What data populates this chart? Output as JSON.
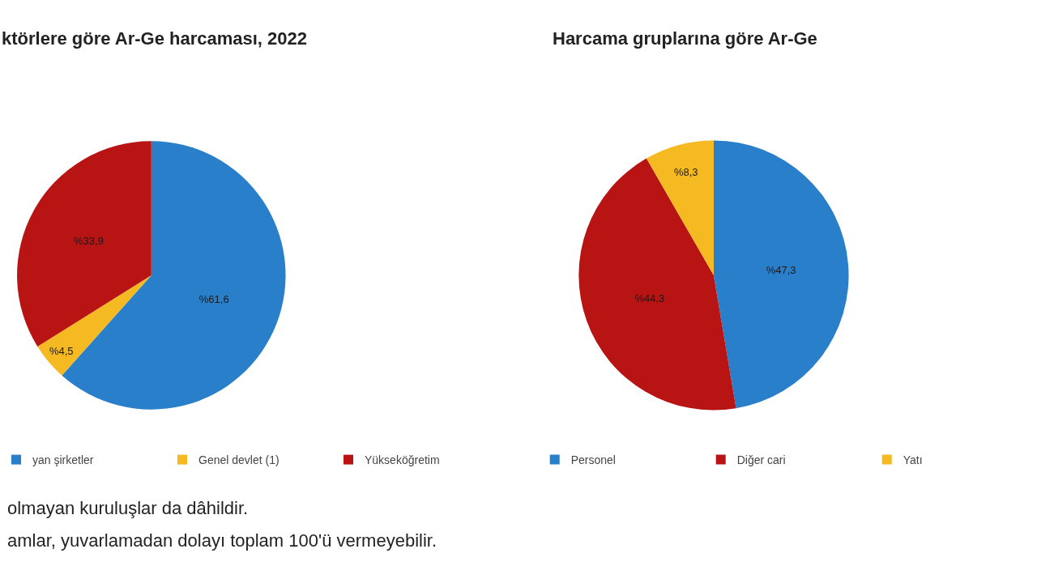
{
  "chart_data": [
    {
      "type": "pie",
      "title": "ktörlere göre Ar-Ge harcaması, 2022",
      "categories": [
        "yan şirketler",
        "Genel devlet (1)",
        "Yükseköğretim"
      ],
      "values": [
        61.6,
        4.5,
        33.9
      ],
      "colors": [
        "#2a7fcb",
        "#f5b921",
        "#b81414"
      ],
      "value_labels": [
        "%61,6",
        "%4,5",
        "%33,9"
      ],
      "legend": "bottom",
      "annotations": [
        "olmayan kuruluşlar da dâhildir.",
        "amlar, yuvarlamadan dolayı toplam 100'ü vermeyebilir."
      ]
    },
    {
      "type": "pie",
      "title": "Harcama gruplarına göre Ar-Ge",
      "categories": [
        "Personel",
        "Diğer cari",
        "Yatı"
      ],
      "values": [
        47.3,
        44.3,
        8.3
      ],
      "colors": [
        "#2a7fcb",
        "#b81414",
        "#f5b921"
      ],
      "value_labels": [
        "%47,3",
        "%44,3",
        "%8,3"
      ],
      "legend": "bottom"
    }
  ]
}
